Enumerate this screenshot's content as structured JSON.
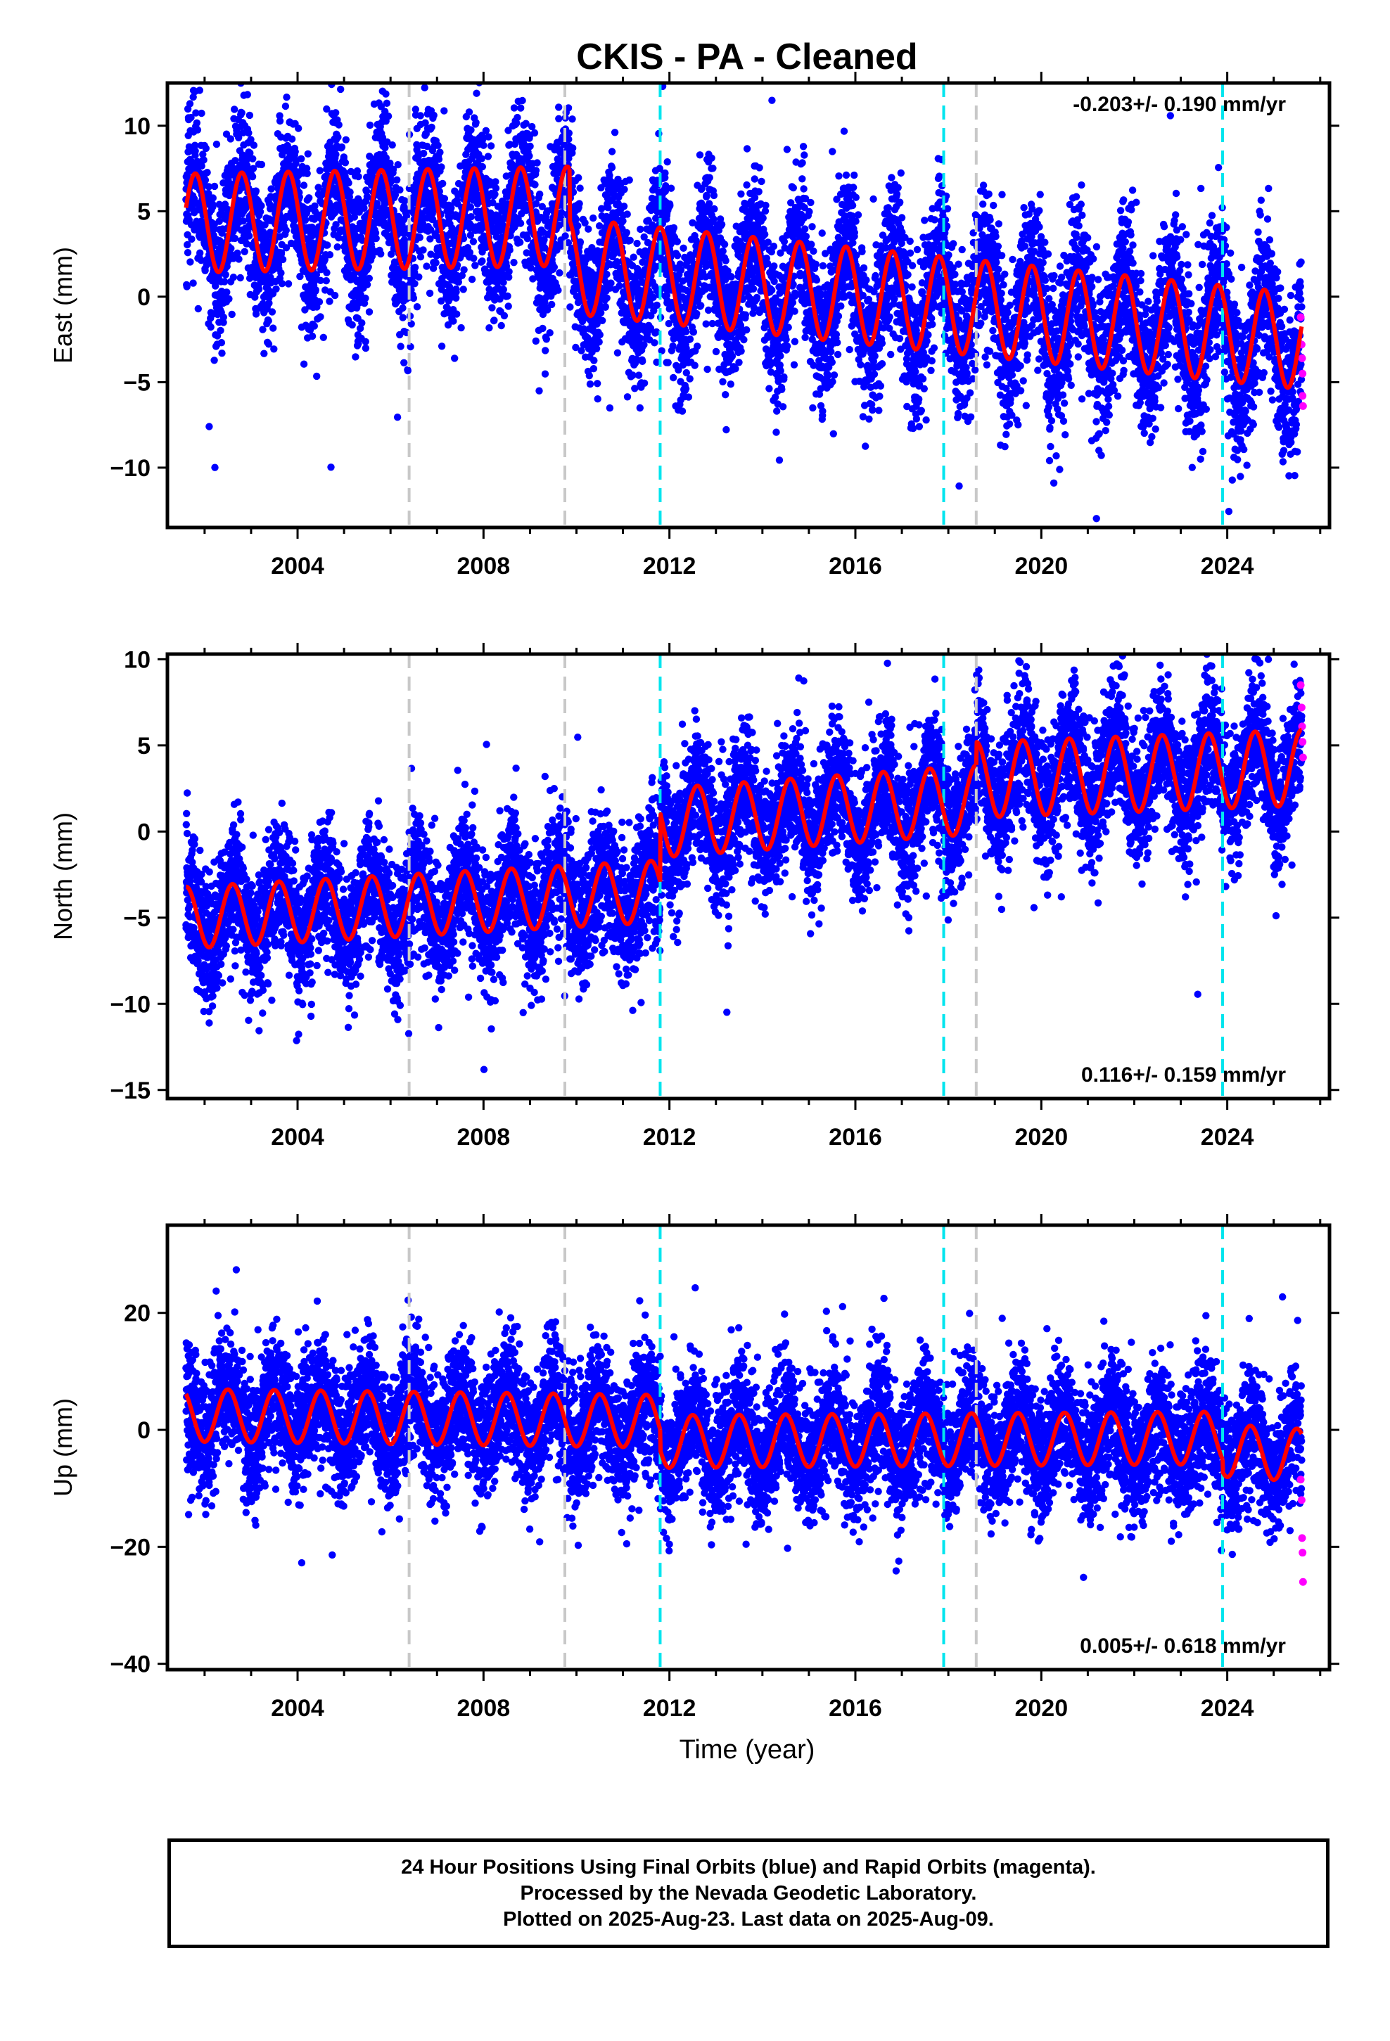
{
  "title": "CKIS  - PA - Cleaned",
  "xlabel": "Time (year)",
  "x_ticks": [
    "2004",
    "2008",
    "2012",
    "2016",
    "2020",
    "2024"
  ],
  "footer": {
    "line1": "24 Hour Positions Using Final Orbits (blue) and Rapid Orbits (magenta).",
    "line2": "Processed by the Nevada Geodetic Laboratory.",
    "line3": "Plotted on 2025-Aug-23. Last data on 2025-Aug-09."
  },
  "colors": {
    "final_orbits": "#0000ff",
    "rapid_orbits": "#ff00ff",
    "model_fit": "#ff0000",
    "equipment_change": "#00e5ee",
    "other_event": "#c8c8c8"
  },
  "chart_data": [
    {
      "type": "scatter",
      "name": "east",
      "ylabel": "East (mm)",
      "rate_text": "-0.203+/- 0.190 mm/yr",
      "rate_position": "top-right",
      "xlim": [
        2001.2,
        2026.2
      ],
      "ylim": [
        -13.5,
        12.5
      ],
      "y_ticks": [
        10,
        5,
        0,
        -5,
        -10
      ],
      "x_ticks": [
        2004,
        2008,
        2012,
        2016,
        2020,
        2024
      ],
      "vlines_cyan": [
        2011.8,
        2017.9,
        2023.9
      ],
      "vlines_gray": [
        2006.4,
        2009.75,
        2018.6
      ],
      "model_fit": {
        "segments": [
          [
            2001.6,
            2009.85
          ],
          [
            2009.85,
            2025.6
          ]
        ],
        "offset_start": [
          4.3,
          1.8
        ],
        "trend_per_year": [
          0.05,
          -0.28
        ],
        "annual_amplitude": [
          2.9,
          2.8
        ],
        "peak_phase": 0.8
      },
      "observations": {
        "start": 2001.6,
        "end": 2025.6,
        "scatter_sd": 2.2
      },
      "rapid_orbit_points": [
        [
          2025.58,
          -1.2
        ],
        [
          2025.6,
          -2.8
        ],
        [
          2025.61,
          -3.6
        ],
        [
          2025.62,
          -4.5
        ],
        [
          2025.62,
          -5.8
        ],
        [
          2025.63,
          -6.4
        ]
      ]
    },
    {
      "type": "scatter",
      "name": "north",
      "ylabel": "North (mm)",
      "rate_text": "0.116+/- 0.159 mm/yr",
      "rate_position": "bottom-right",
      "xlim": [
        2001.2,
        2026.2
      ],
      "ylim": [
        -15.5,
        10.3
      ],
      "y_ticks": [
        10,
        5,
        0,
        -5,
        -10,
        -15
      ],
      "x_ticks": [
        2004,
        2008,
        2012,
        2016,
        2020,
        2024
      ],
      "vlines_cyan": [
        2011.8,
        2017.9,
        2023.9
      ],
      "vlines_gray": [
        2006.4,
        2009.75,
        2018.6
      ],
      "model_fit": {
        "segments": [
          [
            2001.6,
            2011.8
          ],
          [
            2011.8,
            2018.6
          ],
          [
            2018.6,
            2025.6
          ]
        ],
        "offset_start": [
          -5.0,
          0.5,
          3.0
        ],
        "trend_per_year": [
          0.15,
          0.2,
          0.1
        ],
        "annual_amplitude": [
          1.8,
          2.0,
          2.2
        ],
        "peak_phase": 0.6
      },
      "observations": {
        "start": 2001.6,
        "end": 2025.6,
        "scatter_sd": 1.9
      },
      "rapid_orbit_points": [
        [
          2025.58,
          8.5
        ],
        [
          2025.6,
          7.2
        ],
        [
          2025.61,
          6.1
        ],
        [
          2025.62,
          5.2
        ],
        [
          2025.63,
          4.3
        ]
      ]
    },
    {
      "type": "scatter",
      "name": "up",
      "ylabel": "Up (mm)",
      "rate_text": "0.005+/- 0.618 mm/yr",
      "rate_position": "bottom-right",
      "xlim": [
        2001.2,
        2026.2
      ],
      "ylim": [
        -41,
        35
      ],
      "y_ticks": [
        20,
        0,
        -20,
        -40
      ],
      "x_ticks": [
        2004,
        2008,
        2012,
        2016,
        2020,
        2024
      ],
      "vlines_cyan": [
        2011.8,
        2017.9,
        2023.9
      ],
      "vlines_gray": [
        2006.4,
        2009.75,
        2018.6
      ],
      "model_fit": {
        "segments": [
          [
            2001.6,
            2011.8
          ],
          [
            2011.8,
            2023.9
          ],
          [
            2023.9,
            2025.6
          ]
        ],
        "offset_start": [
          2.5,
          -2.0,
          -3.5
        ],
        "trend_per_year": [
          -0.1,
          0.05,
          -0.5
        ],
        "annual_amplitude": [
          4.5,
          4.5,
          4.5
        ],
        "peak_phase": 0.5
      },
      "observations": {
        "start": 2001.6,
        "end": 2025.6,
        "scatter_sd": 5.5
      },
      "rapid_orbit_points": [
        [
          2025.58,
          -8.5
        ],
        [
          2025.6,
          -12.0
        ],
        [
          2025.61,
          -18.5
        ],
        [
          2025.62,
          -21.0
        ],
        [
          2025.63,
          -26.0
        ]
      ]
    }
  ]
}
